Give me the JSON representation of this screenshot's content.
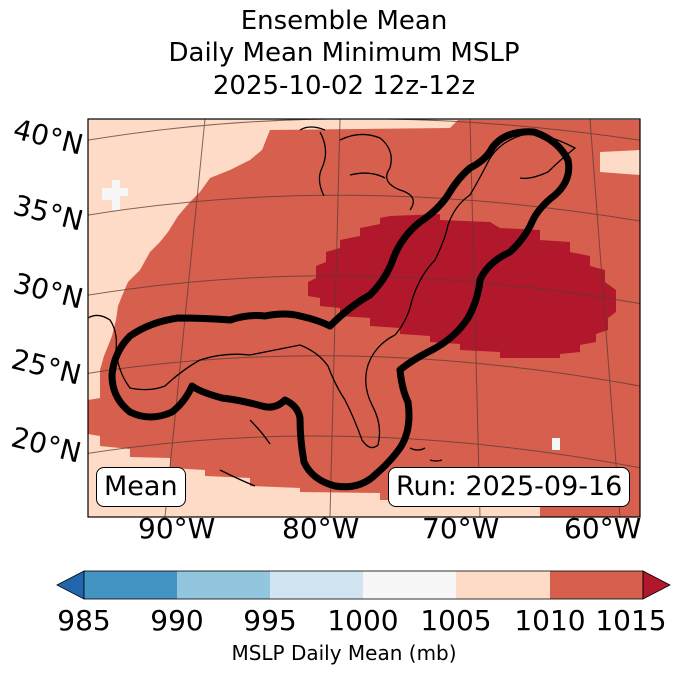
{
  "title": {
    "line1": "Ensemble Mean",
    "line2": "Daily Mean Minimum MSLP",
    "line3": "2025-10-02 12z-12z"
  },
  "map": {
    "lat_labels": [
      "40°N",
      "35°N",
      "30°N",
      "25°N",
      "20°N"
    ],
    "lon_labels": [
      "90°W",
      "80°W",
      "70°W",
      "60°W"
    ],
    "mean_label": "Mean",
    "run_label": "Run: 2025-09-16",
    "colors": {
      "c1005": "#fddbc7",
      "c1010": "#d6604d",
      "c1015": "#b2182b",
      "c1000": "#f7f7f7",
      "contour": "#000000"
    }
  },
  "colorbar": {
    "ticks": [
      "985",
      "990",
      "995",
      "1000",
      "1005",
      "1010",
      "1015"
    ],
    "label": "MSLP Daily Mean (mb)",
    "colors": [
      "#2166ac",
      "#4393c3",
      "#92c5de",
      "#d1e5f0",
      "#f7f7f7",
      "#fddbc7",
      "#d6604d",
      "#b2182b"
    ]
  }
}
